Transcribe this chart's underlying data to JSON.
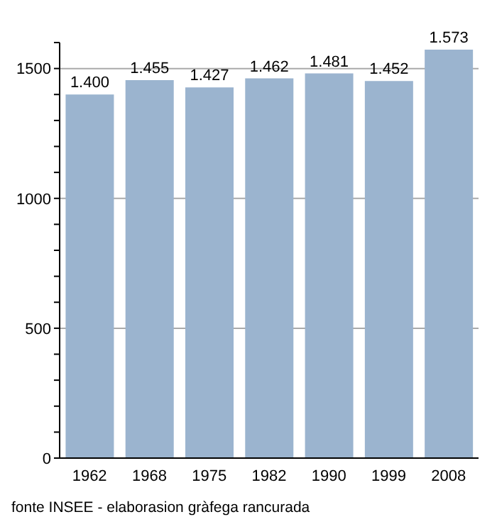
{
  "chart_data": {
    "type": "bar",
    "categories": [
      "1962",
      "1968",
      "1975",
      "1982",
      "1990",
      "1999",
      "2008"
    ],
    "values": [
      1400,
      1455,
      1427,
      1462,
      1481,
      1452,
      1573
    ],
    "value_labels": [
      "1.400",
      "1.455",
      "1.427",
      "1.462",
      "1.481",
      "1.452",
      "1.573"
    ],
    "color": "#9bb4cf",
    "ylim": [
      0,
      1600
    ],
    "yticks": [
      0,
      {
        "value": 100,
        "label": null
      },
      {
        "value": 200,
        "label": null
      },
      {
        "value": 300,
        "label": null
      },
      {
        "value": 400,
        "label": null
      },
      500,
      {
        "value": 600,
        "label": null
      },
      {
        "value": 700,
        "label": null
      },
      {
        "value": 800,
        "label": null
      },
      {
        "value": 900,
        "label": null
      },
      1000,
      {
        "value": 1100,
        "label": null
      },
      {
        "value": 1200,
        "label": null
      },
      {
        "value": 1300,
        "label": null
      },
      {
        "value": 1400,
        "label": null
      },
      1500,
      {
        "value": 1600,
        "label": null
      }
    ],
    "grid": "y",
    "annotations": [
      "fonte INSEE - elaborasion gràfega rancurada"
    ]
  }
}
